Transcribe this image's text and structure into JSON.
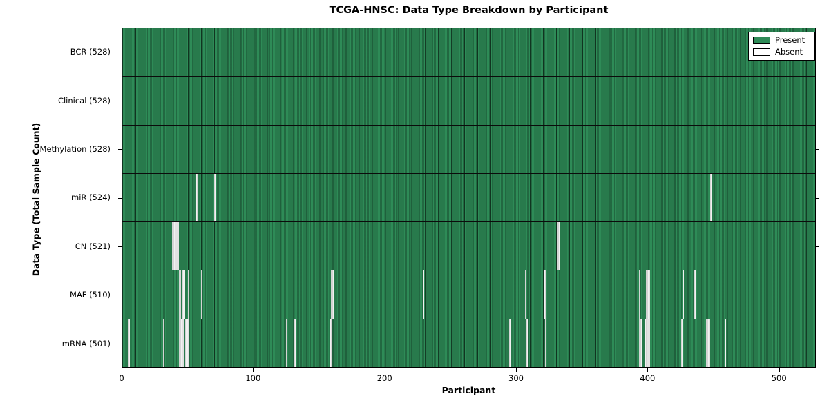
{
  "title": "TCGA-HNSC: Data Type Breakdown by Participant",
  "chart_data": {
    "type": "heatmap",
    "title": "TCGA-HNSC: Data Type Breakdown by Participant",
    "xlabel": "Participant",
    "ylabel": "Data Type (Total Sample Count)",
    "xlim": [
      0,
      528
    ],
    "x_ticks": [
      0,
      100,
      200,
      300,
      400,
      500
    ],
    "n_participants": 528,
    "grid": false,
    "legend": {
      "position": "upper right",
      "entries": [
        {
          "label": "Present",
          "color": "#2E8B57"
        },
        {
          "label": "Absent",
          "color": "#FFFFFF"
        }
      ]
    },
    "colors": {
      "present": "#2E8B57",
      "absent": "#F1F1F1",
      "edge": "#000000"
    },
    "rows": [
      {
        "name": "BCR",
        "total": 528,
        "label": "BCR (528)",
        "absent_indices": []
      },
      {
        "name": "Clinical",
        "total": 528,
        "label": "Clinical (528)",
        "absent_indices": []
      },
      {
        "name": "Methylation",
        "total": 528,
        "label": "Methylation (528)",
        "absent_indices": []
      },
      {
        "name": "miR",
        "total": 524,
        "label": "miR (524)",
        "absent_indices": [
          56,
          57,
          70,
          448
        ]
      },
      {
        "name": "CN",
        "total": 521,
        "label": "CN (521)",
        "absent_indices": [
          38,
          39,
          40,
          41,
          42,
          331,
          332
        ]
      },
      {
        "name": "MAF",
        "total": 510,
        "label": "MAF (510)",
        "absent_indices": [
          43,
          44,
          46,
          47,
          50,
          60,
          159,
          160,
          229,
          307,
          321,
          322,
          394,
          399,
          400,
          401,
          427,
          436
        ]
      },
      {
        "name": "mRNA",
        "total": 501,
        "label": "mRNA (501)",
        "absent_indices": [
          5,
          31,
          43,
          44,
          45,
          46,
          48,
          49,
          50,
          125,
          131,
          158,
          159,
          295,
          308,
          322,
          394,
          395,
          398,
          399,
          400,
          401,
          426,
          445,
          446,
          447,
          459
        ]
      }
    ]
  }
}
